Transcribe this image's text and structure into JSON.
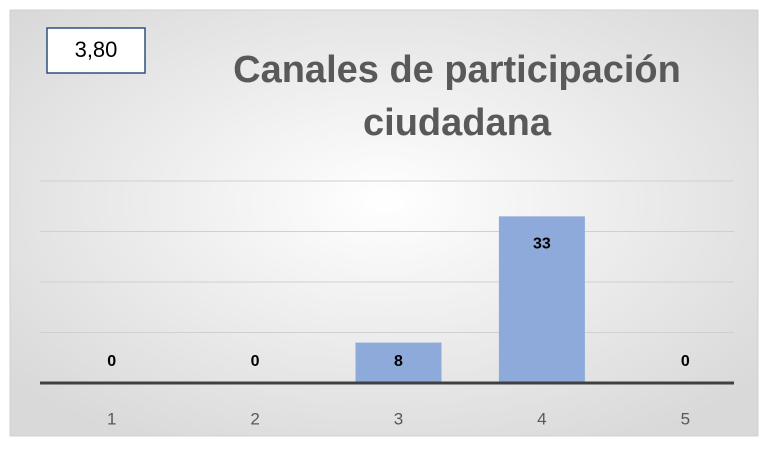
{
  "chart_data": {
    "type": "bar",
    "title": "Canales de participación ciudadana",
    "annotation": "3,80",
    "categories": [
      "1",
      "2",
      "3",
      "4",
      "5"
    ],
    "values": [
      0,
      0,
      8,
      33,
      0
    ],
    "color": "#8eaadb",
    "ylim": [
      0,
      40
    ],
    "yticks": [
      0,
      10,
      20,
      30,
      40
    ],
    "grid": true
  }
}
